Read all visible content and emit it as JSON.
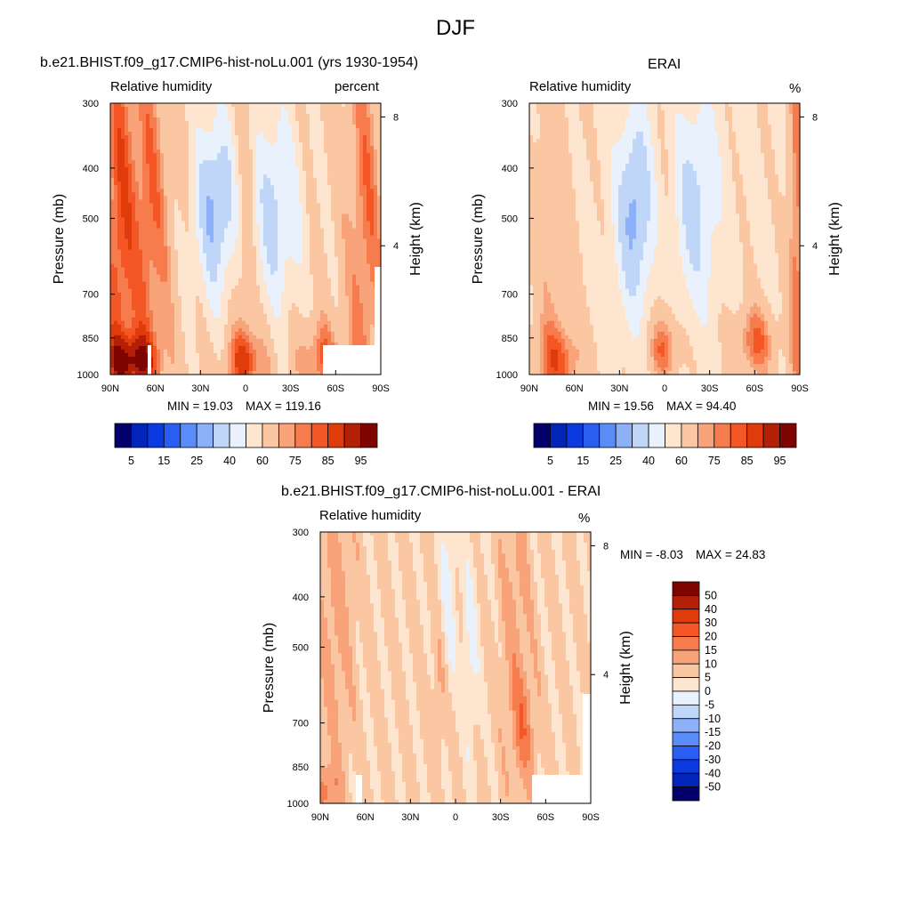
{
  "figure_title": "DJF",
  "chart_data": [
    {
      "id": "model",
      "type": "heatmap",
      "title": "b.e21.BHIST.f09_g17.CMIP6-hist-noLu.001 (yrs 1930-1954)",
      "left_label": "Relative humidity",
      "right_label": "percent",
      "xlabel": "",
      "ylabel": "Pressure (mb)",
      "ylabel_right": "Height (km)",
      "x_ticks": [
        "90N",
        "60N",
        "30N",
        "0",
        "30S",
        "60S",
        "90S"
      ],
      "y_ticks": [
        "300",
        "400",
        "500",
        "700",
        "850",
        "1000"
      ],
      "y_right_ticks": [
        "8",
        "4"
      ],
      "min_label": "MIN =  19.03",
      "max_label": "MAX = 119.16",
      "min": 19.03,
      "max": 119.16,
      "colorbar": {
        "orientation": "horizontal",
        "colors": [
          "#03006b",
          "#0324b8",
          "#0a3ae0",
          "#2a5df2",
          "#5a8cf7",
          "#8db1f9",
          "#c0d6f9",
          "#e9f2fc",
          "#fde5cf",
          "#fbc7a3",
          "#f9a37a",
          "#f67c4e",
          "#f45625",
          "#e03c0b",
          "#b31f07",
          "#7e0502"
        ],
        "labels": [
          "5",
          "15",
          "25",
          "40",
          "60",
          "75",
          "85",
          "95"
        ]
      }
    },
    {
      "id": "erai",
      "type": "heatmap",
      "title": "ERAI",
      "left_label": "Relative humidity",
      "right_label": "%",
      "xlabel": "",
      "ylabel": "Pressure (mb)",
      "ylabel_right": "Height (km)",
      "x_ticks": [
        "90N",
        "60N",
        "30N",
        "0",
        "30S",
        "60S",
        "90S"
      ],
      "y_ticks": [
        "300",
        "400",
        "500",
        "700",
        "850",
        "1000"
      ],
      "y_right_ticks": [
        "8",
        "4"
      ],
      "min_label": "MIN =  19.56",
      "max_label": "MAX =  94.40",
      "min": 19.56,
      "max": 94.4,
      "colorbar": {
        "orientation": "horizontal",
        "colors": [
          "#03006b",
          "#0324b8",
          "#0a3ae0",
          "#2a5df2",
          "#5a8cf7",
          "#8db1f9",
          "#c0d6f9",
          "#e9f2fc",
          "#fde5cf",
          "#fbc7a3",
          "#f9a37a",
          "#f67c4e",
          "#f45625",
          "#e03c0b",
          "#b31f07",
          "#7e0502"
        ],
        "labels": [
          "5",
          "15",
          "25",
          "40",
          "60",
          "75",
          "85",
          "95"
        ]
      }
    },
    {
      "id": "diff",
      "type": "heatmap",
      "title": "b.e21.BHIST.f09_g17.CMIP6-hist-noLu.001 - ERAI",
      "left_label": "Relative humidity",
      "right_label": "%",
      "xlabel": "",
      "ylabel": "Pressure (mb)",
      "ylabel_right": "Height (km)",
      "x_ticks": [
        "90N",
        "60N",
        "30N",
        "0",
        "30S",
        "60S",
        "90S"
      ],
      "y_ticks": [
        "300",
        "400",
        "500",
        "700",
        "850",
        "1000"
      ],
      "y_right_ticks": [
        "8",
        "4"
      ],
      "min_label": "MIN = -8.03",
      "max_label": "MAX =  24.83",
      "min": -8.03,
      "max": 24.83,
      "colorbar": {
        "orientation": "vertical",
        "colors": [
          "#7e0502",
          "#b31f07",
          "#e03c0b",
          "#f45625",
          "#f67c4e",
          "#f9a37a",
          "#fbc7a3",
          "#fde5cf",
          "#e9f2fc",
          "#c0d6f9",
          "#8db1f9",
          "#5a8cf7",
          "#2a5df2",
          "#0a3ae0",
          "#0324b8",
          "#03006b"
        ],
        "labels": [
          "50",
          "40",
          "30",
          "20",
          "15",
          "10",
          "5",
          "0",
          "-5",
          "-10",
          "-15",
          "-20",
          "-30",
          "-40",
          "-50"
        ]
      }
    }
  ]
}
